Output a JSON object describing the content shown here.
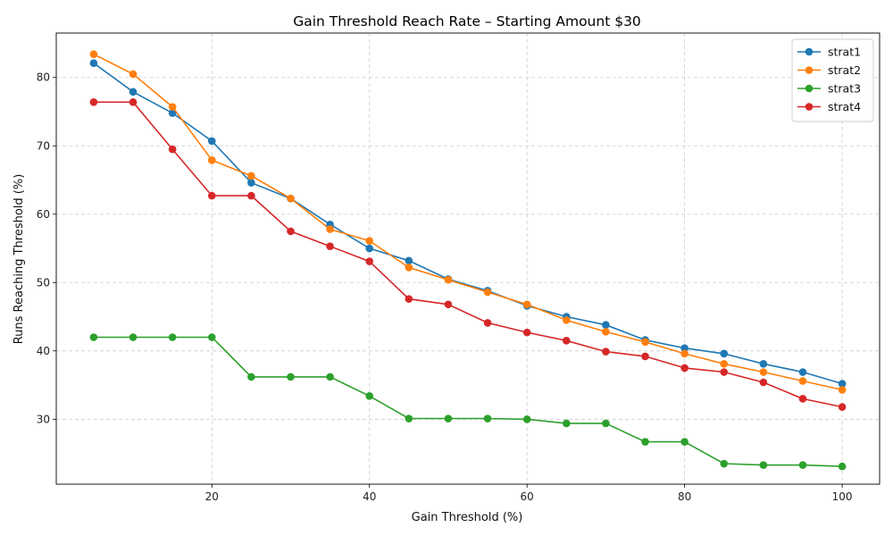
{
  "chart_data": {
    "type": "line",
    "title": "Gain Threshold Reach Rate – Starting Amount $30",
    "xlabel": "Gain Threshold (%)",
    "ylabel": "Runs Reaching Threshold (%)",
    "xlim": [
      0.25,
      104.75
    ],
    "ylim": [
      20.5,
      86.5
    ],
    "xticks": [
      20,
      40,
      60,
      80,
      100
    ],
    "yticks": [
      30,
      40,
      50,
      60,
      70,
      80
    ],
    "grid": true,
    "legend_position": "top-right",
    "x": [
      5,
      10,
      15,
      20,
      25,
      30,
      35,
      40,
      45,
      50,
      55,
      60,
      65,
      70,
      75,
      80,
      85,
      90,
      95,
      100
    ],
    "series": [
      {
        "name": "strat1",
        "color": "#1f77b4",
        "values": [
          82.1,
          77.9,
          74.8,
          70.7,
          64.6,
          62.3,
          58.5,
          55.0,
          53.2,
          50.5,
          48.8,
          46.6,
          45.0,
          43.8,
          41.6,
          40.4,
          39.6,
          38.1,
          36.9,
          35.2
        ]
      },
      {
        "name": "strat2",
        "color": "#ff7f0e",
        "values": [
          83.4,
          80.5,
          75.7,
          67.9,
          65.6,
          62.3,
          57.8,
          56.1,
          52.2,
          50.4,
          48.6,
          46.8,
          44.5,
          42.8,
          41.3,
          39.6,
          38.1,
          36.9,
          35.6,
          34.3
        ]
      },
      {
        "name": "strat3",
        "color": "#2ca02c",
        "values": [
          42.0,
          42.0,
          42.0,
          42.0,
          36.2,
          36.2,
          36.2,
          33.4,
          30.1,
          30.1,
          30.1,
          30.0,
          29.4,
          29.4,
          26.7,
          26.7,
          23.5,
          23.3,
          23.3,
          23.1
        ]
      },
      {
        "name": "strat4",
        "color": "#d62728",
        "values": [
          76.4,
          76.4,
          69.5,
          62.7,
          62.7,
          57.5,
          55.3,
          53.1,
          47.6,
          46.8,
          44.1,
          42.7,
          41.5,
          39.9,
          39.2,
          37.5,
          36.9,
          35.4,
          33.0,
          31.8
        ]
      }
    ]
  }
}
